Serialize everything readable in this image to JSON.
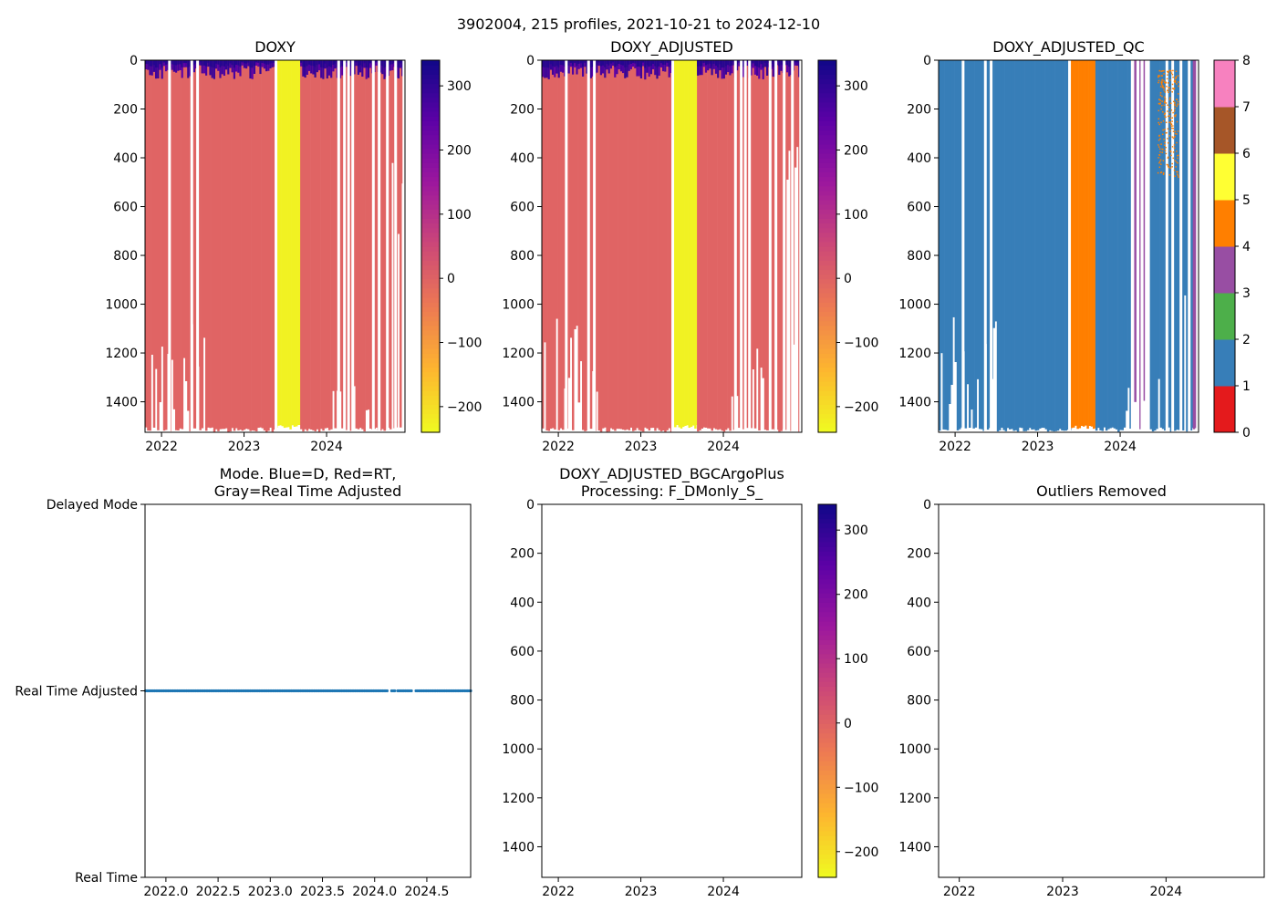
{
  "figure": {
    "title": "3902004, 215 profiles, 2021-10-21 to 2024-12-10"
  },
  "colors": {
    "plasma_r": [
      "#f0f921",
      "#fdb42f",
      "#ed7953",
      "#cc4778",
      "#9c179e",
      "#5c01a6",
      "#0d0887"
    ],
    "fill_value": "#e06464",
    "qc": [
      "#e41a1c",
      "#377eb8",
      "#4daf4a",
      "#984ea3",
      "#ff7f00",
      "#ffff33",
      "#a65628",
      "#f781bf",
      "#999999"
    ],
    "mode_dots": "#1f77b4"
  },
  "chart_data": [
    {
      "id": "doxy",
      "type": "heatmap",
      "title": "DOXY",
      "xlabel": "",
      "ylabel": "",
      "xlim": [
        2021.8,
        2024.95
      ],
      "ylim": [
        1525,
        0
      ],
      "xticks": [
        2022,
        2023,
        2024
      ],
      "yticks": [
        0,
        200,
        400,
        600,
        800,
        1000,
        1200,
        1400
      ],
      "segments": [
        {
          "x0": 2021.8,
          "x1": 2023.38,
          "value": 20,
          "surface_high": true
        },
        {
          "x0": 2023.38,
          "x1": 2023.68,
          "value": -230,
          "surface_high": false
        },
        {
          "x0": 2023.68,
          "x1": 2024.13,
          "value": 20,
          "surface_high": true
        },
        {
          "x0": 2024.13,
          "x1": 2024.92,
          "value": 20,
          "surface_high": true
        }
      ],
      "colorbar": {
        "cmap": "plasma_r",
        "range": [
          -240,
          340
        ],
        "ticks": [
          -200,
          -100,
          0,
          100,
          200,
          300
        ],
        "labels": [
          "−200",
          "−100",
          "0",
          "100",
          "200",
          "300"
        ]
      }
    },
    {
      "id": "doxy_adjusted",
      "type": "heatmap",
      "title": "DOXY_ADJUSTED",
      "xlabel": "",
      "ylabel": "",
      "xlim": [
        2021.8,
        2024.95
      ],
      "ylim": [
        1525,
        0
      ],
      "xticks": [
        2022,
        2023,
        2024
      ],
      "yticks": [
        0,
        200,
        400,
        600,
        800,
        1000,
        1200,
        1400
      ],
      "segments": [
        {
          "x0": 2021.8,
          "x1": 2023.38,
          "value": 20,
          "surface_high": true
        },
        {
          "x0": 2023.38,
          "x1": 2023.68,
          "value": -230,
          "surface_high": false
        },
        {
          "x0": 2023.68,
          "x1": 2024.13,
          "value": 20,
          "surface_high": true
        },
        {
          "x0": 2024.13,
          "x1": 2024.92,
          "value": 20,
          "surface_high": true
        }
      ],
      "colorbar": {
        "cmap": "plasma_r",
        "range": [
          -240,
          340
        ],
        "ticks": [
          -200,
          -100,
          0,
          100,
          200,
          300
        ],
        "labels": [
          "−200",
          "−100",
          "0",
          "100",
          "200",
          "300"
        ]
      }
    },
    {
      "id": "doxy_adjusted_qc",
      "type": "heatmap",
      "title": "DOXY_ADJUSTED_QC",
      "xlabel": "",
      "ylabel": "",
      "xlim": [
        2021.8,
        2024.95
      ],
      "ylim": [
        1525,
        0
      ],
      "xticks": [
        2022,
        2023,
        2024
      ],
      "yticks": [
        0,
        200,
        400,
        600,
        800,
        1000,
        1200,
        1400
      ],
      "segments": [
        {
          "x0": 2021.8,
          "x1": 2023.4,
          "qc": 1
        },
        {
          "x0": 2023.4,
          "x1": 2023.7,
          "qc": 4
        },
        {
          "x0": 2023.7,
          "x1": 2024.13,
          "qc": 1
        },
        {
          "x0": 2024.17,
          "x1": 2024.19,
          "qc": 3
        },
        {
          "x0": 2024.22,
          "x1": 2024.24,
          "qc": 3
        },
        {
          "x0": 2024.28,
          "x1": 2024.3,
          "qc": 3
        },
        {
          "x0": 2024.36,
          "x1": 2024.88,
          "qc": 1
        },
        {
          "x0": 2024.88,
          "x1": 2024.92,
          "qc": 3
        }
      ],
      "scatter_qc4": {
        "x_range": [
          2024.45,
          2024.7
        ],
        "depth_range": [
          40,
          480
        ]
      },
      "colorbar": {
        "discrete_levels": [
          0,
          1,
          2,
          3,
          4,
          5,
          6,
          7,
          8
        ],
        "labels": [
          "0",
          "1",
          "2",
          "3",
          "4",
          "5",
          "6",
          "7",
          "8"
        ]
      }
    },
    {
      "id": "mode",
      "type": "scatter",
      "title": "Mode. Blue=D, Red=RT,\nGray=Real Time Adjusted",
      "title_lines": [
        "Mode. Blue=D, Red=RT,",
        "Gray=Real Time Adjusted"
      ],
      "xlabel": "",
      "ylabel": "",
      "xlim": [
        2021.8,
        2024.92
      ],
      "ylim": [
        0,
        2
      ],
      "xticks": [
        2022.0,
        2022.5,
        2023.0,
        2023.5,
        2024.0,
        2024.5
      ],
      "xtick_labels": [
        "2022.0",
        "2022.5",
        "2023.0",
        "2023.5",
        "2024.0",
        "2024.5"
      ],
      "yticks": [
        0,
        1,
        2
      ],
      "ytick_labels": [
        "Real Time",
        "Real Time Adjusted",
        "Delayed Mode"
      ],
      "points": {
        "x_start": 2021.805,
        "x_end": 2024.92,
        "count": 215,
        "y": 1,
        "gaps": [
          [
            2024.13,
            2024.16
          ],
          [
            2024.2,
            2024.22
          ],
          [
            2024.36,
            2024.39
          ]
        ]
      }
    },
    {
      "id": "doxy_bgcargoplus",
      "type": "heatmap",
      "title": "DOXY_ADJUSTED_BGCArgoPlus\nProcessing: F_DMonly_S_",
      "title_lines": [
        "DOXY_ADJUSTED_BGCArgoPlus",
        "Processing: F_DMonly_S_"
      ],
      "xlabel": "",
      "ylabel": "",
      "xlim": [
        2021.8,
        2024.95
      ],
      "ylim": [
        1525,
        0
      ],
      "xticks": [
        2022,
        2023,
        2024
      ],
      "yticks": [
        0,
        200,
        400,
        600,
        800,
        1000,
        1200,
        1400
      ],
      "segments": [],
      "colorbar": {
        "cmap": "plasma_r",
        "range": [
          -240,
          340
        ],
        "ticks": [
          -200,
          -100,
          0,
          100,
          200,
          300
        ],
        "labels": [
          "−200",
          "−100",
          "0",
          "100",
          "200",
          "300"
        ]
      }
    },
    {
      "id": "outliers",
      "type": "scatter",
      "title": "Outliers Removed",
      "xlabel": "",
      "ylabel": "",
      "xlim": [
        2021.8,
        2024.95
      ],
      "ylim": [
        1525,
        0
      ],
      "xticks": [
        2022,
        2023,
        2024
      ],
      "yticks": [
        0,
        200,
        400,
        600,
        800,
        1000,
        1200,
        1400
      ],
      "points": []
    }
  ]
}
